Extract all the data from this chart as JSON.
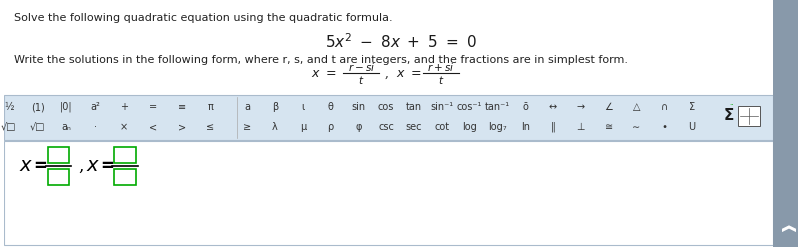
{
  "bg_color": "#ffffff",
  "toolbar_bg": "#d6e4f0",
  "answer_bg": "#ffffff",
  "answer_border": "#cccccc",
  "title_text": "Solve the following quadratic equation using the quadratic formula.",
  "equation": "5x² − 8x + 5 = 0",
  "instruction": "Write the solutions in the following form, where r, s, and t are integers, and the fractions are in simplest form.",
  "solution_template": "x =        , x =       ",
  "toolbar_items_row1": [
    "½",
    "(1)",
    "|0|",
    "a²",
    "+",
    "=",
    "≡",
    "π",
    "α",
    "β",
    "ι",
    "θ",
    "sin",
    "cos",
    "tan",
    "sin⁻¹",
    "cos⁻¹",
    "tan⁻¹",
    "ō",
    "↔",
    "→",
    "∠",
    "△",
    "∩",
    "Σ"
  ],
  "toolbar_items_row2": [
    "√□",
    "√□",
    "aₙ",
    "·",
    "×",
    "<",
    ">",
    "≤",
    "≥",
    "λ",
    "μ",
    "ρ",
    "φ",
    "csc",
    "sec",
    "cot",
    "log",
    "log₇",
    "ln",
    "‖",
    "⊥",
    "≅",
    "∼",
    "∙",
    "U",
    "[□□\n□□]"
  ],
  "text_color": "#222222",
  "equation_color": "#1a1a1a",
  "toolbar_text_color": "#333333",
  "green_box_color": "#00aa00"
}
